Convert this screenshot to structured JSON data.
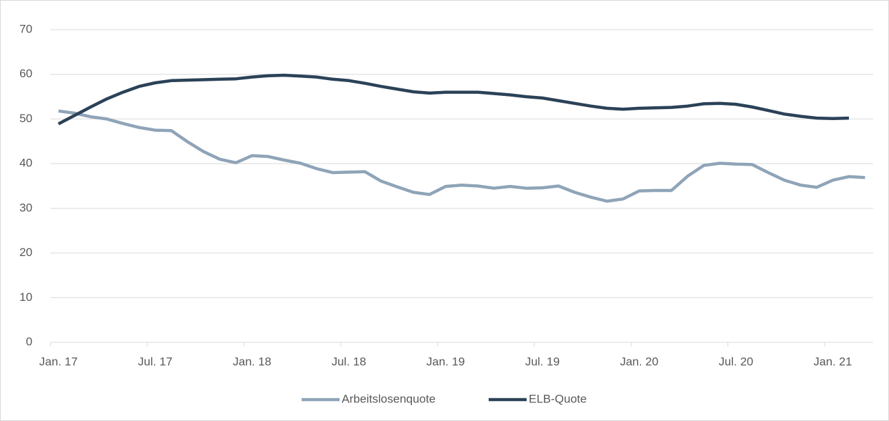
{
  "chart_data": {
    "type": "line",
    "categories": [
      "Jan. 17",
      null,
      null,
      null,
      null,
      null,
      "Jul. 17",
      null,
      null,
      null,
      null,
      null,
      "Jan. 18",
      null,
      null,
      null,
      null,
      null,
      "Jul. 18",
      null,
      null,
      null,
      null,
      null,
      "Jan. 19",
      null,
      null,
      null,
      null,
      null,
      "Jul. 19",
      null,
      null,
      null,
      null,
      null,
      "Jan. 20",
      null,
      null,
      null,
      null,
      null,
      "Jul. 20",
      null,
      null,
      null,
      null,
      null,
      "Jan. 21",
      null,
      null
    ],
    "series": [
      {
        "name": "Arbeitslosenquote",
        "color": "#8fa4b8",
        "values": [
          51.8,
          51.3,
          50.5,
          50.0,
          49.0,
          48.1,
          47.5,
          47.4,
          44.9,
          42.7,
          41.0,
          40.2,
          41.8,
          41.6,
          40.8,
          40.1,
          38.9,
          38.0,
          38.1,
          38.2,
          36.1,
          34.8,
          33.6,
          33.1,
          34.9,
          35.2,
          35.0,
          34.5,
          34.9,
          34.5,
          34.6,
          35.0,
          33.6,
          32.5,
          31.6,
          32.1,
          33.9,
          34.0,
          34.0,
          37.2,
          39.6,
          40.1,
          39.9,
          39.8,
          38.0,
          36.3,
          35.2,
          34.7,
          36.3,
          37.1,
          36.9
        ]
      },
      {
        "name": "ELB-Quote",
        "color": "#2b4258",
        "values": [
          48.9,
          50.8,
          52.7,
          54.5,
          56.0,
          57.3,
          58.1,
          58.6,
          58.7,
          58.8,
          58.9,
          59.0,
          59.4,
          59.7,
          59.8,
          59.6,
          59.4,
          58.9,
          58.6,
          58.0,
          57.3,
          56.7,
          56.1,
          55.8,
          56.0,
          56.0,
          56.0,
          55.7,
          55.4,
          55.0,
          54.7,
          54.1,
          53.5,
          52.9,
          52.4,
          52.2,
          52.4,
          52.5,
          52.6,
          52.9,
          53.4,
          53.5,
          53.3,
          52.7,
          51.9,
          51.1,
          50.6,
          50.2,
          50.1,
          50.2,
          null
        ]
      }
    ],
    "ylim": [
      0,
      70
    ],
    "yticks": [
      0,
      10,
      20,
      30,
      40,
      50,
      60,
      70
    ],
    "grid": true,
    "legend": "bottom"
  }
}
